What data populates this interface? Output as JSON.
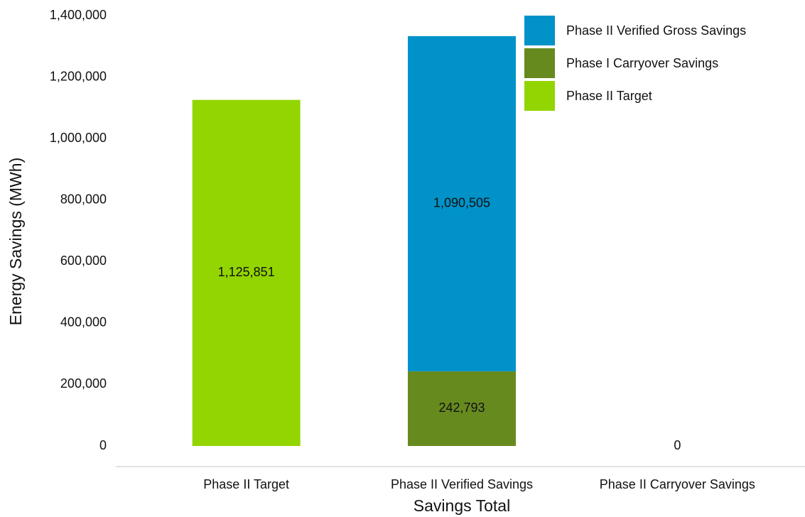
{
  "chart_data": {
    "type": "stacked_bar",
    "y_label": "Energy Savings (MWh)",
    "x_label": "Savings Total",
    "categories": [
      "Phase II Target",
      "Phase II Verified Savings",
      "Phase II Carryover Savings"
    ],
    "series": [
      {
        "name": "Phase II Verified Gross Savings",
        "color": "#0092c8",
        "values": [
          null,
          1090505,
          null
        ],
        "value_labels": [
          null,
          "1,090,505",
          null
        ]
      },
      {
        "name": "Phase I Carryover Savings",
        "color": "#678a1f",
        "values": [
          null,
          242793,
          0
        ],
        "value_labels": [
          null,
          "242,793",
          null
        ]
      },
      {
        "name": "Phase II Target",
        "color": "#93d500",
        "values": [
          1125851,
          null,
          null
        ],
        "value_labels": [
          "1,125,851",
          null,
          null
        ]
      }
    ],
    "ylim": [
      0,
      1400000
    ],
    "yticks": [
      0,
      {
        "value": 200000,
        "label": "200,000"
      },
      {
        "value": 400000,
        "label": "400,000"
      },
      {
        "value": 600000,
        "label": "600,000"
      },
      {
        "value": 800000,
        "label": "800,000"
      },
      {
        "value": 1000000,
        "label": "1,000,000"
      },
      {
        "value": 1200000,
        "label": "1,200,000"
      },
      {
        "value": 1400000,
        "label": "1,400,000"
      }
    ],
    "grid": false,
    "legend": "upper right"
  }
}
